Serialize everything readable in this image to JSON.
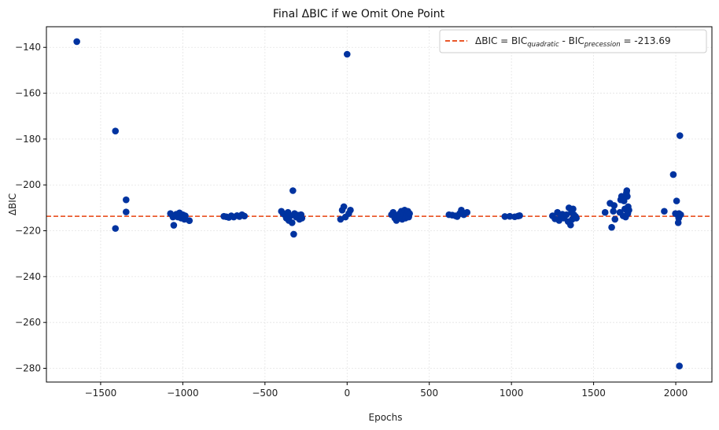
{
  "chart_data": {
    "type": "scatter",
    "title": "Final ΔBIC if we Omit One Point",
    "xlabel": "Epochs",
    "ylabel": "ΔBIC",
    "xlim": [
      -1830,
      2220
    ],
    "ylim": [
      -286,
      -131
    ],
    "xticks": [
      -1500,
      -1000,
      -500,
      0,
      500,
      1000,
      1500,
      2000
    ],
    "yticks": [
      -140,
      -160,
      -180,
      -200,
      -220,
      -240,
      -260,
      -280
    ],
    "grid": true,
    "legend_placement": "top-right",
    "colors": {
      "points": "#0033a0",
      "reference_line": "#e8400c"
    },
    "reference_line": {
      "y": -213.69,
      "style": "dashed",
      "legend": {
        "prefix": "ΔBIC = BIC",
        "sub1": "quadratic",
        "middle": " - BIC",
        "sub2": "precession",
        "suffix": " = -213.69"
      }
    },
    "points": [
      [
        -1645,
        -137.5
      ],
      [
        -1410,
        -176.5
      ],
      [
        -1410,
        -219.0
      ],
      [
        -1345,
        -206.5
      ],
      [
        -1345,
        -211.8
      ],
      [
        -1075,
        -212.5
      ],
      [
        -1060,
        -214.0
      ],
      [
        -1055,
        -217.6
      ],
      [
        -1040,
        -212.8
      ],
      [
        -1030,
        -214.0
      ],
      [
        -1020,
        -212.2
      ],
      [
        -1010,
        -214.5
      ],
      [
        -1000,
        -213.0
      ],
      [
        -990,
        -215.0
      ],
      [
        -985,
        -213.5
      ],
      [
        -960,
        -215.6
      ],
      [
        -750,
        -213.7
      ],
      [
        -735,
        -213.9
      ],
      [
        -720,
        -214.2
      ],
      [
        -705,
        -213.5
      ],
      [
        -690,
        -214.0
      ],
      [
        -670,
        -213.4
      ],
      [
        -655,
        -213.8
      ],
      [
        -640,
        -213.0
      ],
      [
        -625,
        -213.6
      ],
      [
        -400,
        -211.5
      ],
      [
        -390,
        -212.5
      ],
      [
        -380,
        -213.0
      ],
      [
        -370,
        -214.5
      ],
      [
        -360,
        -212.0
      ],
      [
        -355,
        -215.5
      ],
      [
        -345,
        -213.5
      ],
      [
        -335,
        -216.5
      ],
      [
        -330,
        -202.5
      ],
      [
        -325,
        -221.5
      ],
      [
        -320,
        -212.5
      ],
      [
        -310,
        -214.0
      ],
      [
        -300,
        -213.2
      ],
      [
        -290,
        -215.0
      ],
      [
        -280,
        -213.0
      ],
      [
        -275,
        -214.5
      ],
      [
        -40,
        -215.0
      ],
      [
        -30,
        -211.0
      ],
      [
        -20,
        -209.5
      ],
      [
        -10,
        -214.0
      ],
      [
        0,
        -143.0
      ],
      [
        10,
        -212.5
      ],
      [
        20,
        -211.0
      ],
      [
        270,
        -213.0
      ],
      [
        280,
        -212.0
      ],
      [
        290,
        -214.5
      ],
      [
        300,
        -215.5
      ],
      [
        310,
        -213.2
      ],
      [
        320,
        -212.5
      ],
      [
        325,
        -214.0
      ],
      [
        330,
        -211.5
      ],
      [
        335,
        -215.0
      ],
      [
        340,
        -212.0
      ],
      [
        345,
        -213.5
      ],
      [
        350,
        -211.0
      ],
      [
        355,
        -214.5
      ],
      [
        360,
        -212.8
      ],
      [
        365,
        -213.8
      ],
      [
        370,
        -211.5
      ],
      [
        375,
        -214.0
      ],
      [
        380,
        -212.5
      ],
      [
        620,
        -213.0
      ],
      [
        640,
        -213.2
      ],
      [
        660,
        -213.5
      ],
      [
        670,
        -213.8
      ],
      [
        685,
        -212.5
      ],
      [
        695,
        -211.0
      ],
      [
        710,
        -213.0
      ],
      [
        730,
        -212.0
      ],
      [
        960,
        -213.8
      ],
      [
        990,
        -213.7
      ],
      [
        1020,
        -213.9
      ],
      [
        1040,
        -213.6
      ],
      [
        1050,
        -213.4
      ],
      [
        1250,
        -213.5
      ],
      [
        1265,
        -214.8
      ],
      [
        1280,
        -212.0
      ],
      [
        1290,
        -215.5
      ],
      [
        1300,
        -213.5
      ],
      [
        1310,
        -212.8
      ],
      [
        1320,
        -214.5
      ],
      [
        1335,
        -213.0
      ],
      [
        1345,
        -216.0
      ],
      [
        1350,
        -210.0
      ],
      [
        1360,
        -217.5
      ],
      [
        1365,
        -212.0
      ],
      [
        1370,
        -215.0
      ],
      [
        1375,
        -210.5
      ],
      [
        1380,
        -213.0
      ],
      [
        1390,
        -213.8
      ],
      [
        1395,
        -214.5
      ],
      [
        1570,
        -212.0
      ],
      [
        1600,
        -208.0
      ],
      [
        1610,
        -218.5
      ],
      [
        1620,
        -211.5
      ],
      [
        1625,
        -209.0
      ],
      [
        1630,
        -215.0
      ],
      [
        1660,
        -212.0
      ],
      [
        1665,
        -206.5
      ],
      [
        1670,
        -205.0
      ],
      [
        1680,
        -213.5
      ],
      [
        1685,
        -207.0
      ],
      [
        1690,
        -210.5
      ],
      [
        1695,
        -214.0
      ],
      [
        1700,
        -203.5
      ],
      [
        1702,
        -202.5
      ],
      [
        1705,
        -205.0
      ],
      [
        1708,
        -212.5
      ],
      [
        1710,
        -209.5
      ],
      [
        1715,
        -211.0
      ],
      [
        1930,
        -211.5
      ],
      [
        1985,
        -195.5
      ],
      [
        1998,
        -212.5
      ],
      [
        2005,
        -207.0
      ],
      [
        2010,
        -213.0
      ],
      [
        2015,
        -216.5
      ],
      [
        2018,
        -214.5
      ],
      [
        2020,
        -212.5
      ],
      [
        2022,
        -279.0
      ],
      [
        2025,
        -178.5
      ],
      [
        2030,
        -213.0
      ]
    ]
  }
}
